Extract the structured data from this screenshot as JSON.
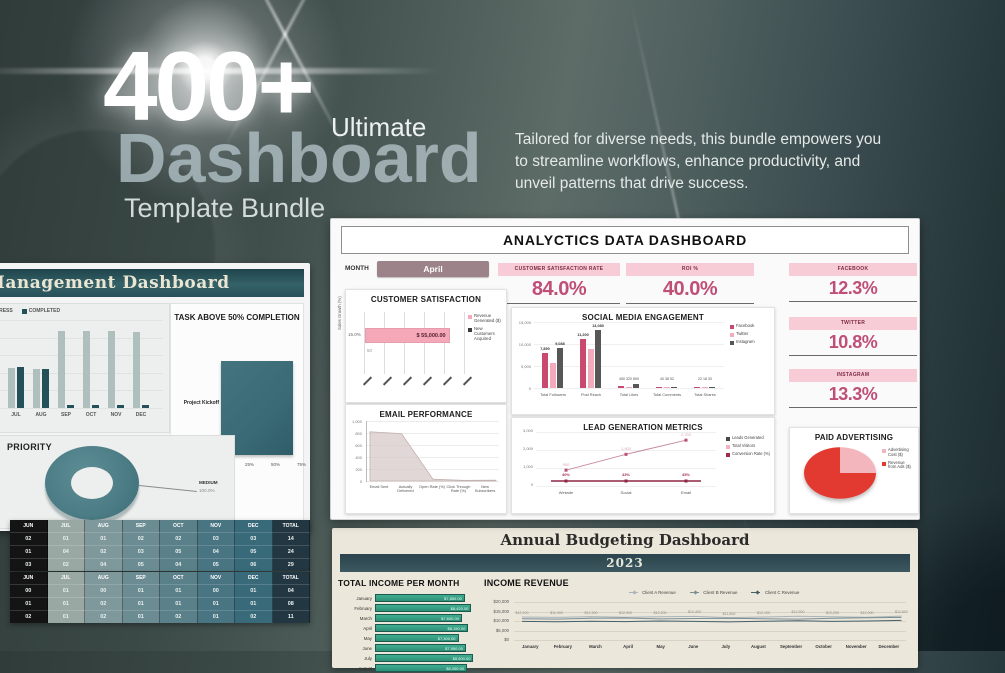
{
  "hero": {
    "count": "400+",
    "ultimate": "Ultimate",
    "title": "Dashboard",
    "subtitle": "Template Bundle",
    "description": "Tailored for diverse needs, this bundle empowers you to streamline workflows, enhance productivity, and unveil patterns that drive success."
  },
  "analytics": {
    "title": "ANALYCTICS DATA DASHBOARD",
    "month_label": "MONTH",
    "month_value": "April",
    "kpis": [
      {
        "label": "CUSTOMER SATISFACTION RATE",
        "value": "84.0%"
      },
      {
        "label": "ROI %",
        "value": "40.0%"
      },
      {
        "label": "FACEBOOK",
        "value": "12.3%"
      },
      {
        "label": "TWITTER",
        "value": "10.8%"
      },
      {
        "label": "INSTAGRAM",
        "value": "13.3%"
      }
    ],
    "accent_pink": "#c04f78",
    "pill_pink": "#f8ccd6",
    "month_button_color": "#9c8289"
  },
  "management": {
    "title": "Management Dashboard",
    "tables": {
      "headers": [
        "JUN",
        "JUL",
        "AUG",
        "SEP",
        "OCT",
        "NOV",
        "DEC",
        "TOTAL"
      ],
      "table1_rows": [
        [
          "02",
          "01",
          "01",
          "02",
          "02",
          "03",
          "03",
          "14"
        ],
        [
          "01",
          "04",
          "02",
          "03",
          "05",
          "04",
          "05",
          "24"
        ],
        [
          "03",
          "02",
          "04",
          "05",
          "04",
          "05",
          "06",
          "29"
        ]
      ],
      "table2_rows": [
        [
          "00",
          "01",
          "00",
          "01",
          "01",
          "00",
          "01",
          "04"
        ],
        [
          "01",
          "01",
          "02",
          "01",
          "01",
          "01",
          "01",
          "08"
        ],
        [
          "02",
          "01",
          "02",
          "01",
          "02",
          "01",
          "02",
          "11"
        ]
      ]
    }
  },
  "budgeting": {
    "title": "Annual Budgeting Dashboard",
    "year": "2023"
  },
  "chart_data": [
    {
      "id": "customer-satisfaction",
      "type": "bar",
      "orientation": "horizontal",
      "title": "CUSTOMER SATISFACTION",
      "ylabel": "Sales Growth (%)",
      "categories": [
        ""
      ],
      "values": [
        55000
      ],
      "xlim": [
        0,
        65000
      ],
      "bar_label": "$ 55,000.00",
      "axis_label": "15.0%",
      "tick_note": "50",
      "legend": [
        {
          "name": "Revenue Generated ($)",
          "color": "#f4a8b8"
        },
        {
          "name": "New Customers Acquired",
          "color": "#3a3a3a"
        }
      ]
    },
    {
      "id": "email-performance",
      "type": "area",
      "title": "EMAIL PERFORMANCE",
      "categories": [
        "Email Sent",
        "Actually Delivered",
        "Open Rate (%)",
        "Click Through Rate (%)",
        "New Subscribers"
      ],
      "values": [
        820,
        790,
        30,
        10,
        15
      ],
      "yticks": [
        "1,000",
        "800",
        "600",
        "400",
        "200",
        "0"
      ],
      "ylim": [
        0,
        1000
      ],
      "fill": "#d6c8c7"
    },
    {
      "id": "social-media",
      "type": "bar",
      "title": "SOCIAL MEDIA ENGAGEMENT",
      "categories": [
        "Total Followers",
        "Post Reach",
        "Total Likes",
        "Total Comments",
        "Total Shares"
      ],
      "series": [
        {
          "name": "Facebook",
          "color": "#c9496f",
          "values": [
            7890,
            11200,
            450,
            40,
            22
          ]
        },
        {
          "name": "Twitter",
          "color": "#f3aabb",
          "values": [
            5600,
            8900,
            320,
            38,
            18
          ]
        },
        {
          "name": "Instagram",
          "color": "#575757",
          "values": [
            9088,
            13080,
            890,
            52,
            30
          ]
        }
      ],
      "value_labels": [
        [
          "7,890",
          null,
          "9,088"
        ],
        [
          "11,200",
          null,
          "13,080"
        ],
        null,
        null,
        null
      ],
      "group_notes": [
        null,
        null,
        "450 320 890",
        "40 38 52",
        "22 18 30"
      ],
      "yticks": [
        "15,000",
        "10,000",
        "5,000",
        "0"
      ],
      "ylim": [
        0,
        15000
      ],
      "legend_position": "right"
    },
    {
      "id": "lead-generation",
      "type": "line",
      "title": "LEAD GENERATION METRICS",
      "categories": [
        "Website",
        "Social",
        "Email"
      ],
      "series": [
        {
          "name": "Leads Generated",
          "color": "#474747",
          "values": [
            950,
            1900,
            2750
          ]
        },
        {
          "name": "Total Visitors",
          "color": "#f2b4c0",
          "values": [
            950,
            1900,
            2750
          ]
        },
        {
          "name": "Conversion Rate (%)",
          "color": "#a02a4a",
          "values": [
            40,
            43,
            45
          ]
        }
      ],
      "point_labels": [
        "950",
        "1,900",
        "2,750"
      ],
      "pct_labels": [
        "40%",
        "43%",
        "45%"
      ],
      "yticks": [
        "3,000",
        "2,000",
        "1,000",
        "0"
      ],
      "ylim": [
        0,
        3000
      ]
    },
    {
      "id": "paid-advertising",
      "type": "pie",
      "title": "PAID ADVERTISING",
      "slices": [
        {
          "label": "Advertising Cost ($)",
          "value": 25,
          "color": "#f4b6bd"
        },
        {
          "label": "Revenue from Ads ($)",
          "value": 75,
          "color": "#e23a30"
        }
      ]
    },
    {
      "id": "mgmt-monthly",
      "type": "bar",
      "categories": [
        "JUL",
        "AUG",
        "SEP",
        "OCT",
        "NOV",
        "DEC"
      ],
      "series": [
        {
          "name": "IN PROGRESS",
          "color": "#aebfbd",
          "values": [
            45,
            44,
            88,
            88,
            88,
            86
          ]
        },
        {
          "name": "COMPLETED",
          "color": "#24505a",
          "values": [
            47,
            44,
            3,
            3,
            3,
            3
          ]
        }
      ],
      "ylim": [
        0,
        100
      ]
    },
    {
      "id": "priority",
      "type": "donut",
      "title": "PRIORITY",
      "slices": [
        {
          "label": "MEDIUM",
          "value": 100,
          "color": "#4b7c85"
        }
      ],
      "callout_label": "MEDIUM",
      "callout_value": "100.0%"
    },
    {
      "id": "task-completion",
      "type": "bar",
      "orientation": "horizontal",
      "title": "TASK ABOVE 50% COMPLETION",
      "categories": [
        "Project Kickoff"
      ],
      "values": [
        95
      ],
      "xticks": [
        "0%",
        "25%",
        "50%",
        "75%"
      ],
      "xlim": [
        0,
        100
      ]
    },
    {
      "id": "income-per-month",
      "type": "bar",
      "orientation": "horizontal",
      "title": "TOTAL INCOME PER MONTH",
      "categories": [
        "January",
        "February",
        "March",
        "April",
        "May",
        "June",
        "July",
        "August"
      ],
      "values": [
        7850,
        8420,
        7600,
        8150,
        7300,
        7950,
        8600,
        8050
      ],
      "bar_labels": [
        "$7,850.00",
        "$8,420.00",
        "$7,600.00",
        "$8,150.00",
        "$7,300.00",
        "$7,950.00",
        "$8,600.00",
        "$8,050.00"
      ],
      "xlim": [
        0,
        9000
      ],
      "bar_color": "#35a78b"
    },
    {
      "id": "income-revenue",
      "type": "line",
      "title": "INCOME REVENUE",
      "x": [
        "January",
        "February",
        "March",
        "April",
        "May",
        "June",
        "July",
        "August",
        "September",
        "October",
        "November",
        "December"
      ],
      "series": [
        {
          "name": "Client A Revenue",
          "color": "#a9b4b9",
          "values": [
            12100,
            11900,
            12300,
            12000,
            12200,
            12400,
            11800,
            12100,
            12500,
            12200,
            12000,
            12600
          ]
        },
        {
          "name": "Client B Revenue",
          "color": "#7b8f96",
          "values": [
            11200,
            11000,
            11400,
            11600,
            11100,
            11300,
            11500,
            11200,
            11000,
            11400,
            11700,
            11900
          ]
        },
        {
          "name": "Client C Revenue",
          "color": "#45606b",
          "values": [
            9800,
            9600,
            9900,
            9700,
            10000,
            9800,
            9500,
            9900,
            10100,
            9800,
            10000,
            10300
          ]
        }
      ],
      "point_labels": [
        "$12,100",
        "$11,900",
        "$12,300",
        "$12,000",
        "$12,200",
        "$12,400",
        "$11,800",
        "$12,100",
        "$12,500",
        "$12,200",
        "$12,000",
        "$12,600"
      ],
      "yticks": [
        "$20,000",
        "$15,000",
        "$10,000",
        "$5,000",
        "$0"
      ],
      "ylim": [
        0,
        20000
      ]
    }
  ]
}
